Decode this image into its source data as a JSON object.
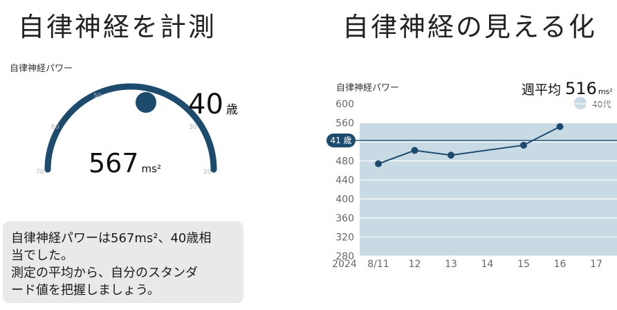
{
  "left_panel": {
    "title": "自律神経を計測",
    "gauge_label": "自律神経パワー",
    "gauge_ticks": [
      "70",
      "60",
      "50",
      "30",
      "20"
    ],
    "age_value": "40",
    "age_unit": "歳",
    "power_value": "567",
    "power_unit": "ms²",
    "message_lines": [
      "自律神経パワーは567ms²、40歳相",
      "当でした。",
      "測定の平均から、自分のスタンダ",
      "ード値を把握しましょう。"
    ]
  },
  "right_panel": {
    "title": "自律神経の見える化",
    "chart_label": "自律神経パワー",
    "weekly_avg_label": "週平均",
    "weekly_avg_value": "516",
    "weekly_avg_unit": "ms²",
    "legend_label": "40代",
    "reference_label": "41 歳"
  },
  "colors": {
    "navy": "#1c4b6e",
    "band": "#c8dae3",
    "gauge_tick": "#b5b5b5"
  },
  "chart_data": {
    "type": "line",
    "year_label": "2024",
    "x": [
      "8/11",
      "12",
      "13",
      "14",
      "15",
      "16",
      "17"
    ],
    "y_ticks": [
      600,
      560,
      520,
      480,
      440,
      400,
      360,
      320,
      280
    ],
    "ylim": [
      280,
      600
    ],
    "band": [
      280,
      560
    ],
    "reference_y": 523,
    "series": [
      {
        "x": [
          "8/11",
          "12",
          "13",
          "15",
          "16"
        ],
        "values": [
          474,
          502,
          492,
          513,
          552
        ]
      }
    ]
  }
}
